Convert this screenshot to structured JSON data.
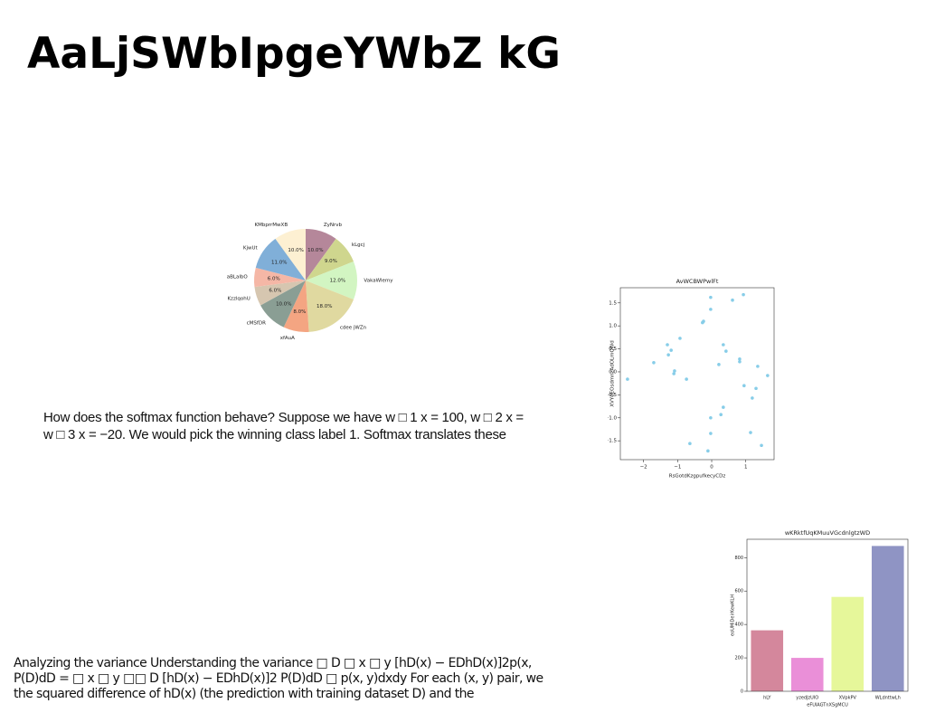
{
  "title": "AaLjSWbIpgeYWbZ kG",
  "paragraphs": [
    {
      "lines": [
        "How does the softmax function behave? Suppose we have w □ 1 x = 100, w □ 2 x =",
        "w □ 3 x = −20. We would pick the winning class label 1. Softmax translates these"
      ]
    },
    {
      "lines": [
        "Analyzing the variance Understanding the variance □ D □ x □ y [hD(x) − EDhD(x)]2p(x,",
        "P(D)dD = □ x □ y □□ D [hD(x) − EDhD(x)]2 P(D)dD □ p(x, y)dxdy For each (x, y) pair, we",
        "the squared difference of hD(x) (the prediction with training dataset D) and the"
      ]
    }
  ],
  "chart_data": [
    {
      "type": "pie",
      "categories": [
        "ZyNrvb",
        "kLgcj",
        "VakaWlemy",
        "cdee jWZn",
        "xfAuA",
        "cMSfDR",
        "KzzlqohU",
        "aBLalbO",
        "KjwUt",
        "KMbprrMwXB"
      ],
      "values": [
        10,
        9,
        12,
        18,
        8,
        10,
        6,
        6,
        11,
        10
      ],
      "value_labels": [
        "10.0%",
        "9.0%",
        "12.0%",
        "18.0%",
        "8.0%",
        "10.0%",
        "6.0%",
        "6.0%",
        "11.0%",
        "10.0%"
      ],
      "colors": [
        "#b5879a",
        "#cfd68e",
        "#d2f5c2",
        "#e0d9a0",
        "#f4a582",
        "#8a9e94",
        "#d6c6b0",
        "#f5b7a6",
        "#80afd8",
        "#fdf0d2"
      ]
    },
    {
      "type": "scatter",
      "title": "AvWCBWPwlFt",
      "x_label": "RsGotdKzgpufkecyCDz",
      "y_label": "XVYdEOsdmnzAdOLmQWd",
      "color": "#87cde8",
      "x": [
        -2.47,
        -1.7,
        -1.3,
        -1.19,
        -1.27,
        -1.09,
        -1.11,
        -0.93,
        -0.74,
        -0.64,
        -0.27,
        -0.24,
        -0.11,
        -0.03,
        -0.03,
        -0.03,
        -0.03,
        0.21,
        0.27,
        0.34,
        0.42,
        0.61,
        0.82,
        0.82,
        0.93,
        0.95,
        1.14,
        1.19,
        1.3,
        1.35,
        1.46,
        1.64,
        0.34
      ],
      "y": [
        -0.16,
        0.2,
        0.59,
        0.47,
        0.37,
        0.02,
        -0.04,
        0.73,
        -0.16,
        -1.56,
        1.07,
        1.1,
        -1.72,
        -1.0,
        -1.34,
        1.62,
        1.36,
        0.16,
        -0.93,
        0.59,
        0.45,
        1.56,
        0.28,
        0.22,
        1.68,
        -0.3,
        -1.32,
        -0.57,
        -0.36,
        0.12,
        -1.6,
        -0.08,
        -0.77
      ],
      "xlim": [
        -2.68,
        1.83
      ],
      "ylim": [
        -1.91,
        1.83
      ],
      "xticks": [
        {
          "value": -2,
          "label": "−2"
        },
        {
          "value": -1,
          "label": "−1"
        },
        0,
        1
      ],
      "yticks": [
        {
          "value": -1.5,
          "label": "−1.5"
        },
        {
          "value": -1,
          "label": "−1.0"
        },
        {
          "value": -0.5,
          "label": "−0.5"
        },
        {
          "value": 0,
          "label": "0.0"
        },
        0.5,
        {
          "value": 1,
          "label": "1.0"
        },
        1.5
      ]
    },
    {
      "type": "bar",
      "title": "wKRktfUqKMuuVGcdnlgtzWD",
      "x_label": "eFUlAGTnXSgMCU",
      "y_label": "eoUMiDeirKewKLH",
      "categories": [
        "hLY",
        "yzedJzUIO",
        "XVpkPV",
        "WLdnttwLh"
      ],
      "values": [
        365,
        200,
        565,
        870
      ],
      "colors": [
        "#d4879c",
        "#ea8fd8",
        "#e6f79a",
        "#8f94c4"
      ],
      "ylim": [
        0,
        910
      ],
      "yticks": [
        0,
        200,
        400,
        600,
        800
      ]
    }
  ]
}
